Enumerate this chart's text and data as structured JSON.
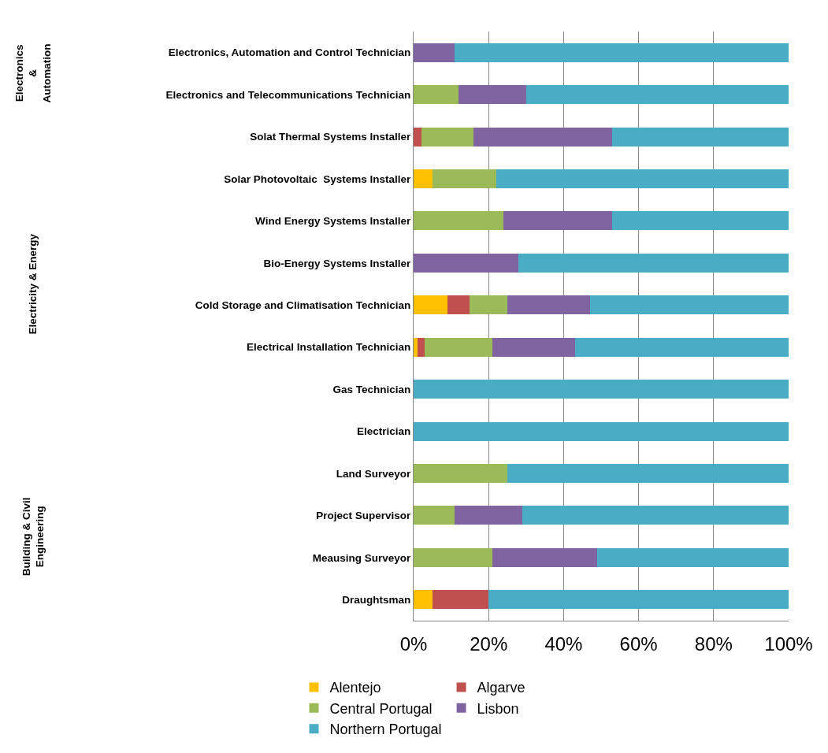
{
  "chart_data": {
    "type": "bar",
    "orientation": "horizontal",
    "stacked": true,
    "categories": [
      "Electronics, Automation and Control Technician",
      "Electronics and Telecommunications Technician",
      "Solat Thermal Systems Installer",
      "Solar Photovoltaic  Systems Installer",
      "Wind Energy Systems Installer",
      "Bio-Energy Systems Installer",
      "Cold Storage and Climatisation Technician",
      "Electrical Installation Technician",
      "Gas Technician",
      "Electrician",
      "Land Surveyor",
      "Project Supervisor",
      "Meausing Surveyor",
      "Draughtsman"
    ],
    "series": [
      {
        "name": "Alentejo",
        "color": "#ffc000",
        "values": [
          0,
          0,
          0,
          5,
          0,
          0,
          9,
          1,
          0,
          0,
          0,
          0,
          0,
          5
        ]
      },
      {
        "name": "Algarve",
        "color": "#c0504d",
        "values": [
          0,
          0,
          2,
          0,
          0,
          0,
          6,
          2,
          0,
          0,
          0,
          0,
          0,
          15
        ]
      },
      {
        "name": "Central Portugal",
        "color": "#9bbb59",
        "values": [
          0,
          12,
          14,
          17,
          24,
          0,
          10,
          18,
          0,
          0,
          25,
          11,
          21,
          0
        ]
      },
      {
        "name": "Lisbon",
        "color": "#8064a2",
        "values": [
          11,
          18,
          37,
          0,
          29,
          28,
          22,
          22,
          0,
          0,
          0,
          18,
          28,
          0
        ]
      },
      {
        "name": "Northern Portugal",
        "color": "#4bacc6",
        "values": [
          89,
          70,
          47,
          78,
          47,
          72,
          53,
          57,
          100,
          100,
          75,
          71,
          51,
          80
        ]
      }
    ],
    "xlim": [
      0,
      100
    ],
    "xticks": [
      {
        "value": 0,
        "label": "0%"
      },
      {
        "value": 20,
        "label": "20%"
      },
      {
        "value": 40,
        "label": "40%"
      },
      {
        "value": 60,
        "label": "60%"
      },
      {
        "value": 80,
        "label": "80%"
      },
      {
        "value": 100,
        "label": "100%"
      }
    ],
    "grid": "x",
    "legend": "bottom",
    "annotations": [
      "Electronics\n&\nAutomation",
      "Electricity & Energy",
      "Building & Civil\nEngineering"
    ]
  }
}
